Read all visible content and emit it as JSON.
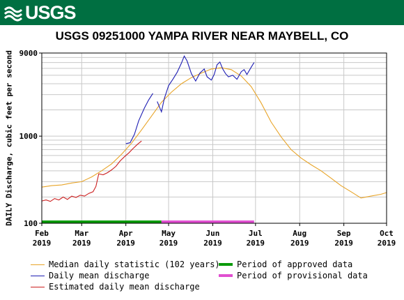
{
  "header": {
    "logo_text": "USGS",
    "logo_icon": "usgs-wave-icon",
    "banner_color": "#006f41"
  },
  "chart_data": {
    "type": "line",
    "title": "USGS 09251000 YAMPA RIVER NEAR MAYBELL, CO",
    "xlabel": "",
    "ylabel": "DAILY Discharge, cubic feet per second",
    "y_scale": "log",
    "ylim": [
      100,
      9000
    ],
    "y_ticks": [
      {
        "value": 100,
        "label": "100"
      },
      {
        "value": 1000,
        "label": "1000"
      },
      {
        "value": 9000,
        "label": "9000"
      }
    ],
    "xlim": [
      "2019-02-01",
      "2019-10-01"
    ],
    "x_ticks": [
      {
        "date": "2019-02-01",
        "month": "Feb",
        "year": "2019"
      },
      {
        "date": "2019-03-01",
        "month": "Mar",
        "year": "2019"
      },
      {
        "date": "2019-04-01",
        "month": "Apr",
        "year": "2019"
      },
      {
        "date": "2019-05-01",
        "month": "May",
        "year": "2019"
      },
      {
        "date": "2019-06-01",
        "month": "Jun",
        "year": "2019"
      },
      {
        "date": "2019-07-01",
        "month": "Jul",
        "year": "2019"
      },
      {
        "date": "2019-08-01",
        "month": "Aug",
        "year": "2019"
      },
      {
        "date": "2019-09-01",
        "month": "Sep",
        "year": "2019"
      },
      {
        "date": "2019-10-01",
        "month": "Oct",
        "year": "2019"
      }
    ],
    "grid": true,
    "legend_position": "bottom",
    "series": [
      {
        "name": "Median daily statistic (102 years)",
        "color": "#e8a428",
        "points": [
          [
            "2019-02-01",
            260
          ],
          [
            "2019-02-08",
            270
          ],
          [
            "2019-02-15",
            275
          ],
          [
            "2019-02-22",
            290
          ],
          [
            "2019-03-01",
            300
          ],
          [
            "2019-03-08",
            340
          ],
          [
            "2019-03-15",
            400
          ],
          [
            "2019-03-22",
            480
          ],
          [
            "2019-03-29",
            620
          ],
          [
            "2019-04-05",
            830
          ],
          [
            "2019-04-12",
            1180
          ],
          [
            "2019-04-19",
            1700
          ],
          [
            "2019-04-26",
            2450
          ],
          [
            "2019-05-03",
            3200
          ],
          [
            "2019-05-10",
            4000
          ],
          [
            "2019-05-17",
            4700
          ],
          [
            "2019-05-24",
            5300
          ],
          [
            "2019-05-31",
            5900
          ],
          [
            "2019-06-07",
            6100
          ],
          [
            "2019-06-14",
            5800
          ],
          [
            "2019-06-21",
            4900
          ],
          [
            "2019-06-28",
            3700
          ],
          [
            "2019-07-05",
            2400
          ],
          [
            "2019-07-12",
            1450
          ],
          [
            "2019-07-19",
            980
          ],
          [
            "2019-07-26",
            700
          ],
          [
            "2019-08-02",
            560
          ],
          [
            "2019-08-09",
            470
          ],
          [
            "2019-08-16",
            400
          ],
          [
            "2019-08-23",
            330
          ],
          [
            "2019-08-30",
            270
          ],
          [
            "2019-09-06",
            230
          ],
          [
            "2019-09-13",
            195
          ],
          [
            "2019-09-20",
            205
          ],
          [
            "2019-09-27",
            215
          ],
          [
            "2019-10-01",
            225
          ]
        ]
      },
      {
        "name": "Daily mean discharge",
        "color": "#1d1db3",
        "points": [
          [
            "2019-04-01",
            820
          ],
          [
            "2019-04-04",
            840
          ],
          [
            "2019-04-07",
            1050
          ],
          [
            "2019-04-10",
            1500
          ],
          [
            "2019-04-14",
            2100
          ],
          [
            "2019-04-17",
            2600
          ],
          [
            "2019-04-20",
            3100
          ],
          [
            "2019-04-21",
            null
          ],
          [
            "2019-04-23",
            2500
          ],
          [
            "2019-04-26",
            1900
          ],
          [
            "2019-04-28",
            2700
          ],
          [
            "2019-05-01",
            3800
          ],
          [
            "2019-05-04",
            4500
          ],
          [
            "2019-05-07",
            5400
          ],
          [
            "2019-05-10",
            6900
          ],
          [
            "2019-05-12",
            8300
          ],
          [
            "2019-05-14",
            7300
          ],
          [
            "2019-05-17",
            5200
          ],
          [
            "2019-05-20",
            4300
          ],
          [
            "2019-05-23",
            5300
          ],
          [
            "2019-05-26",
            5900
          ],
          [
            "2019-05-28",
            4800
          ],
          [
            "2019-05-31",
            4400
          ],
          [
            "2019-06-02",
            5100
          ],
          [
            "2019-06-04",
            6600
          ],
          [
            "2019-06-06",
            7100
          ],
          [
            "2019-06-08",
            5900
          ],
          [
            "2019-06-10",
            5200
          ],
          [
            "2019-06-12",
            4800
          ],
          [
            "2019-06-15",
            5000
          ],
          [
            "2019-06-18",
            4500
          ],
          [
            "2019-06-21",
            5500
          ],
          [
            "2019-06-23",
            5800
          ],
          [
            "2019-06-25",
            5100
          ],
          [
            "2019-06-28",
            6200
          ],
          [
            "2019-06-30",
            7000
          ]
        ]
      },
      {
        "name": "Estimated daily mean discharge",
        "color": "#cc1f1f",
        "points": [
          [
            "2019-02-01",
            180
          ],
          [
            "2019-02-04",
            185
          ],
          [
            "2019-02-07",
            178
          ],
          [
            "2019-02-10",
            192
          ],
          [
            "2019-02-13",
            185
          ],
          [
            "2019-02-16",
            200
          ],
          [
            "2019-02-19",
            188
          ],
          [
            "2019-02-22",
            205
          ],
          [
            "2019-02-25",
            198
          ],
          [
            "2019-02-28",
            210
          ],
          [
            "2019-03-03",
            205
          ],
          [
            "2019-03-06",
            220
          ],
          [
            "2019-03-09",
            230
          ],
          [
            "2019-03-11",
            265
          ],
          [
            "2019-03-13",
            370
          ],
          [
            "2019-03-16",
            360
          ],
          [
            "2019-03-19",
            380
          ],
          [
            "2019-03-22",
            410
          ],
          [
            "2019-03-25",
            450
          ],
          [
            "2019-03-28",
            520
          ],
          [
            "2019-03-31",
            580
          ],
          [
            "2019-04-03",
            640
          ],
          [
            "2019-04-06",
            720
          ],
          [
            "2019-04-09",
            800
          ],
          [
            "2019-04-12",
            880
          ]
        ]
      }
    ],
    "periods": [
      {
        "name": "Period of approved data",
        "color": "#0a9a0a",
        "start": "2019-02-01",
        "end": "2019-04-26"
      },
      {
        "name": "Period of provisional data",
        "color": "#e04fd0",
        "start": "2019-04-26",
        "end": "2019-06-30"
      }
    ]
  }
}
